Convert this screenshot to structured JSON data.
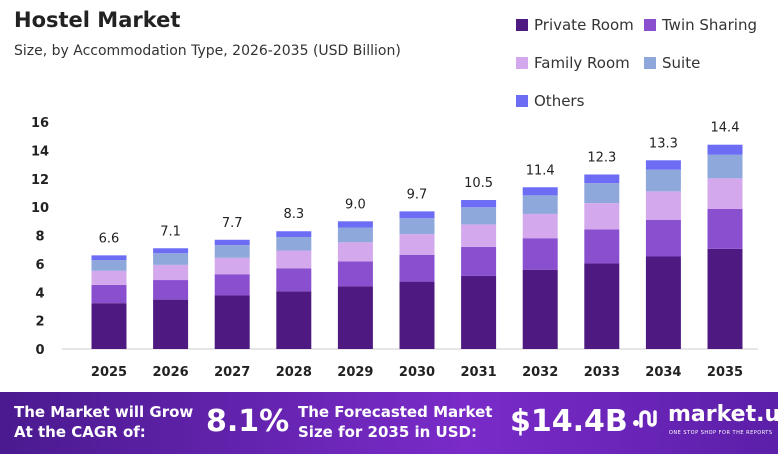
{
  "chart_data": {
    "type": "bar",
    "stacked": true,
    "title": "Hostel Market",
    "subtitle": "Size, by Accommodation Type, 2026-2035 (USD Billion)",
    "xlabel": "",
    "ylabel": "",
    "ylim": [
      0,
      16
    ],
    "yticks": [
      0,
      2,
      4,
      6,
      8,
      10,
      12,
      14,
      16
    ],
    "grid": false,
    "legend_position": "top-right",
    "categories": [
      "2025",
      "2026",
      "2027",
      "2028",
      "2029",
      "2030",
      "2031",
      "2032",
      "2033",
      "2034",
      "2035"
    ],
    "totals": [
      6.6,
      7.1,
      7.7,
      8.3,
      9.0,
      9.7,
      10.5,
      11.4,
      12.3,
      13.3,
      14.4
    ],
    "total_labels": [
      "6.6",
      "7.1",
      "7.7",
      "8.3",
      "9.0",
      "9.7",
      "10.5",
      "11.4",
      "12.3",
      "13.3",
      "14.4"
    ],
    "series": [
      {
        "name": "Private Room",
        "color": "#4e1a82",
        "values": [
          3.23,
          3.48,
          3.77,
          4.07,
          4.41,
          4.75,
          5.15,
          5.59,
          6.03,
          6.52,
          7.06
        ]
      },
      {
        "name": "Twin Sharing",
        "color": "#8a4fcf",
        "values": [
          1.29,
          1.38,
          1.5,
          1.62,
          1.76,
          1.89,
          2.05,
          2.22,
          2.4,
          2.59,
          2.81
        ]
      },
      {
        "name": "Family Room",
        "color": "#d4a8ec",
        "values": [
          0.99,
          1.07,
          1.16,
          1.25,
          1.35,
          1.46,
          1.58,
          1.71,
          1.85,
          2.0,
          2.16
        ]
      },
      {
        "name": "Suite",
        "color": "#8fa8dc",
        "values": [
          0.76,
          0.82,
          0.89,
          0.95,
          1.04,
          1.12,
          1.21,
          1.31,
          1.41,
          1.53,
          1.66
        ]
      },
      {
        "name": "Others",
        "color": "#6c6cf5",
        "values": [
          0.33,
          0.35,
          0.38,
          0.41,
          0.44,
          0.48,
          0.51,
          0.57,
          0.61,
          0.66,
          0.71
        ]
      }
    ]
  },
  "footer": {
    "cagr_label": "The Market will Grow At the CAGR of:",
    "cagr_value": "8.1%",
    "forecast_label": "The Forecasted Market Size for 2035 in USD:",
    "forecast_value": "$14.4B",
    "brand": "market.us",
    "brand_tagline": "ONE STOP SHOP FOR THE REPORTS"
  }
}
